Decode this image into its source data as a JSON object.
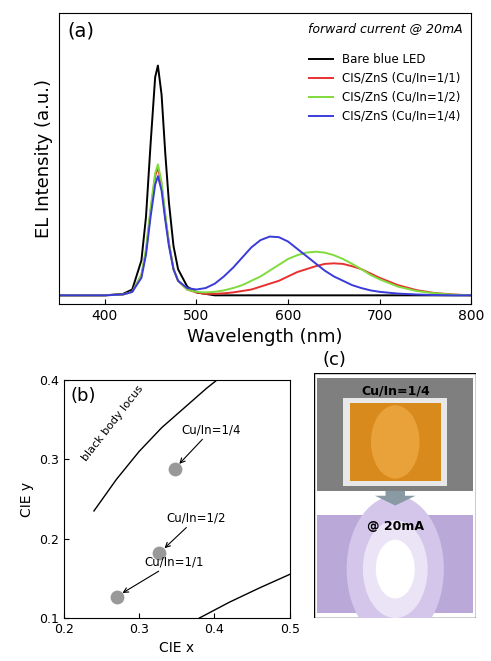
{
  "chart_data": [
    {
      "type": "line",
      "title": "(a)",
      "annotation": "forward current @ 20mA",
      "x_label": "Wavelength (nm)",
      "y_label": "EL Intensity (a.u.)",
      "x": [
        350,
        400,
        420,
        430,
        440,
        445,
        450,
        455,
        458,
        462,
        466,
        470,
        475,
        480,
        490,
        500,
        510,
        520,
        530,
        540,
        550,
        560,
        570,
        580,
        590,
        600,
        610,
        620,
        630,
        640,
        650,
        660,
        670,
        680,
        690,
        700,
        720,
        740,
        760,
        780,
        800
      ],
      "series": [
        {
          "name": "Bare blue LED",
          "color": "#000000",
          "values": [
            0.03,
            0.03,
            0.035,
            0.05,
            0.15,
            0.3,
            0.55,
            0.78,
            0.82,
            0.72,
            0.52,
            0.35,
            0.2,
            0.12,
            0.06,
            0.04,
            0.035,
            0.03,
            0.03,
            0.03,
            0.03,
            0.03,
            0.03,
            0.03,
            0.03,
            0.03,
            0.03,
            0.03,
            0.03,
            0.03,
            0.03,
            0.03,
            0.03,
            0.03,
            0.03,
            0.03,
            0.03,
            0.03,
            0.03,
            0.03,
            0.03
          ]
        },
        {
          "name": "CIS/ZnS (Cu/In=1/1)",
          "color": "#e8312f",
          "values": [
            0.03,
            0.03,
            0.033,
            0.042,
            0.1,
            0.18,
            0.32,
            0.44,
            0.47,
            0.41,
            0.3,
            0.21,
            0.12,
            0.08,
            0.05,
            0.04,
            0.035,
            0.035,
            0.037,
            0.04,
            0.045,
            0.05,
            0.06,
            0.07,
            0.08,
            0.095,
            0.11,
            0.12,
            0.13,
            0.138,
            0.14,
            0.138,
            0.13,
            0.12,
            0.105,
            0.09,
            0.065,
            0.048,
            0.038,
            0.033,
            0.03
          ]
        },
        {
          "name": "CIS/ZnS (Cu/In=1/2)",
          "color": "#7fdc3c",
          "values": [
            0.03,
            0.03,
            0.033,
            0.042,
            0.1,
            0.19,
            0.33,
            0.45,
            0.48,
            0.42,
            0.31,
            0.21,
            0.12,
            0.08,
            0.05,
            0.042,
            0.04,
            0.042,
            0.047,
            0.055,
            0.065,
            0.08,
            0.095,
            0.115,
            0.135,
            0.155,
            0.168,
            0.177,
            0.18,
            0.177,
            0.168,
            0.155,
            0.138,
            0.12,
            0.1,
            0.085,
            0.06,
            0.045,
            0.037,
            0.032,
            0.03
          ]
        },
        {
          "name": "CIS/ZnS (Cu/In=1/4)",
          "color": "#3b3bd9",
          "values": [
            0.03,
            0.03,
            0.033,
            0.042,
            0.09,
            0.17,
            0.3,
            0.41,
            0.44,
            0.39,
            0.29,
            0.2,
            0.12,
            0.08,
            0.055,
            0.05,
            0.055,
            0.07,
            0.095,
            0.125,
            0.16,
            0.195,
            0.22,
            0.232,
            0.23,
            0.215,
            0.19,
            0.165,
            0.14,
            0.115,
            0.095,
            0.08,
            0.065,
            0.055,
            0.047,
            0.042,
            0.036,
            0.033,
            0.031,
            0.03,
            0.03
          ]
        }
      ],
      "xlim": [
        350,
        800
      ],
      "xticks": [
        400,
        500,
        600,
        700,
        800
      ],
      "ylim": [
        0,
        1
      ],
      "tick_labels": "x",
      "legend": "upper right"
    },
    {
      "type": "scatter",
      "title": "(b)",
      "x_label": "CIE x",
      "y_label": "CIE y",
      "color": "#999999",
      "points": [
        {
          "label": "Cu/In=1/4",
          "x": 0.347,
          "y": 0.288
        },
        {
          "label": "Cu/In=1/2",
          "x": 0.327,
          "y": 0.182
        },
        {
          "label": "Cu/In=1/1",
          "x": 0.27,
          "y": 0.127
        }
      ],
      "curves": [
        {
          "label": "black body locus",
          "x": [
            0.24,
            0.27,
            0.3,
            0.33,
            0.36,
            0.39,
            0.41
          ],
          "y": [
            0.235,
            0.275,
            0.31,
            0.34,
            0.365,
            0.39,
            0.405
          ]
        },
        {
          "x": [
            0.38,
            0.42,
            0.46,
            0.5
          ],
          "y": [
            0.1,
            0.12,
            0.138,
            0.155
          ]
        }
      ],
      "xlim": [
        0.2,
        0.5
      ],
      "xticks": [
        0.2,
        0.3,
        0.4,
        0.5
      ],
      "ylim": [
        0.1,
        0.4
      ],
      "yticks": [
        0.1,
        0.2,
        0.3,
        0.4
      ]
    },
    {
      "type": "photo",
      "title": "(c)",
      "texts": [
        "Cu/In=1/4",
        "@ 20mA"
      ]
    }
  ]
}
